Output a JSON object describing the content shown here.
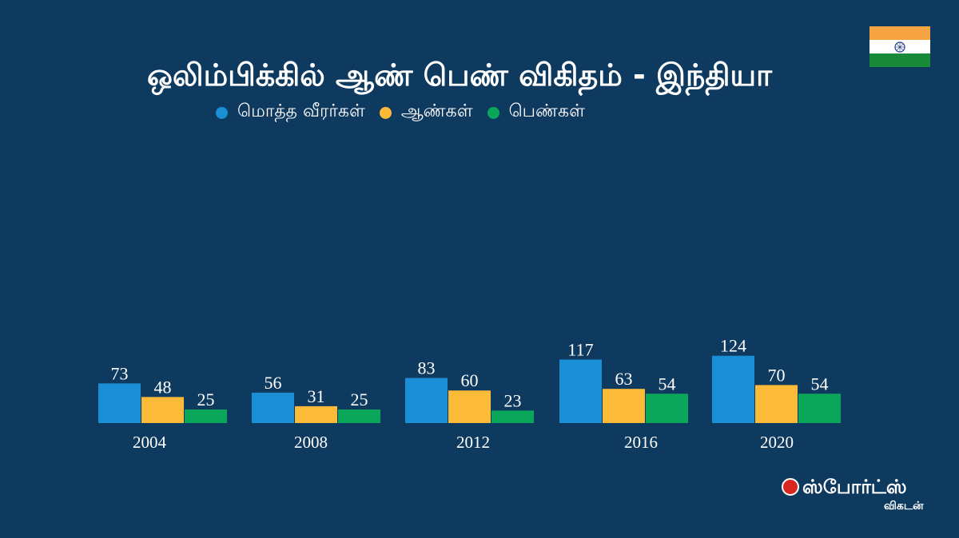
{
  "title": "ஒலிம்பிக்கில் ஆண் பெண் விகிதம் - இந்தியா",
  "legend": [
    {
      "label": "மொத்த வீரர்கள்",
      "color": "#1a8fd6"
    },
    {
      "label": "ஆண்கள்",
      "color": "#fbba37"
    },
    {
      "label": "பெண்கள்",
      "color": "#0aa75a"
    }
  ],
  "flag": {
    "colors": [
      "#f6a442",
      "#ffffff",
      "#198a3a"
    ],
    "icon": "ashoka-chakra-icon"
  },
  "logo": {
    "main": "ஸ்போர்ட்ஸ்",
    "sub": "விகடன்"
  },
  "chart_data": {
    "type": "bar",
    "title": "ஒலிம்பிக்கில் ஆண் பெண் விகிதம் - இந்தியா",
    "categories": [
      "2004",
      "2008",
      "2012",
      "2016",
      "2020"
    ],
    "series": [
      {
        "name": "மொத்த வீரர்கள்",
        "color": "#1a8fd6",
        "values": [
          73,
          56,
          83,
          117,
          124
        ]
      },
      {
        "name": "ஆண்கள்",
        "color": "#fbba37",
        "values": [
          48,
          31,
          60,
          63,
          70
        ]
      },
      {
        "name": "பெண்கள்",
        "color": "#0aa75a",
        "values": [
          25,
          25,
          23,
          54,
          54
        ]
      }
    ],
    "data_labels": true,
    "grid": false,
    "legend_position": "top"
  }
}
